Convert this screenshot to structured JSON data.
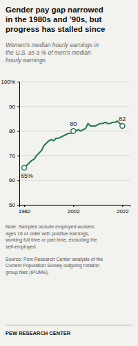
{
  "chart_data": {
    "type": "line",
    "title": "Gender pay gap narrowed\nin the 1980s and ’90s, but\nprogress has stalled since",
    "subtitle": "Women’s median hourly earnings in\nthe U.S. as a % of men’s median\nhourly earnings",
    "note": "Note: Samples include employed workers\nages 16 or older with positive earnings,\nworking full time or part time, excluding the\nself-employed.",
    "source": "Source: Pew Research Center analysis of the\nCurrent Population Survey outgoing rotation\ngroup files (IPUMS).",
    "footer": "PEW RESEARCH CENTER",
    "x": [
      1982,
      1983,
      1984,
      1985,
      1986,
      1987,
      1988,
      1989,
      1990,
      1991,
      1992,
      1993,
      1994,
      1995,
      1996,
      1997,
      1998,
      1999,
      2000,
      2001,
      2002,
      2003,
      2004,
      2005,
      2006,
      2007,
      2008,
      2009,
      2010,
      2011,
      2012,
      2013,
      2014,
      2015,
      2016,
      2017,
      2018,
      2019,
      2020,
      2021,
      2022
    ],
    "values": [
      65,
      66,
      67,
      68,
      68.5,
      70,
      71,
      72,
      74,
      75,
      76,
      76.5,
      76,
      77,
      77,
      77.5,
      78,
      78.5,
      79,
      79,
      80,
      80,
      80.5,
      80,
      80.5,
      81,
      83,
      82,
      82,
      82,
      82.5,
      83,
      83,
      83.5,
      83,
      83,
      83.5,
      83.5,
      84,
      83,
      82
    ],
    "color": "#2e7d5e",
    "annotations": [
      {
        "x": 1982,
        "y": 65,
        "label": "65%"
      },
      {
        "x": 2002,
        "y": 80,
        "label": "80"
      },
      {
        "x": 2022,
        "y": 82,
        "label": "82"
      }
    ],
    "xlim": [
      1980,
      2025
    ],
    "xticks": [
      1982,
      2002,
      2022
    ],
    "ylim": [
      50,
      100
    ],
    "yticks": [
      50,
      60,
      70,
      80,
      90,
      {
        "value": 100,
        "label": "100%"
      }
    ],
    "grid": true
  }
}
